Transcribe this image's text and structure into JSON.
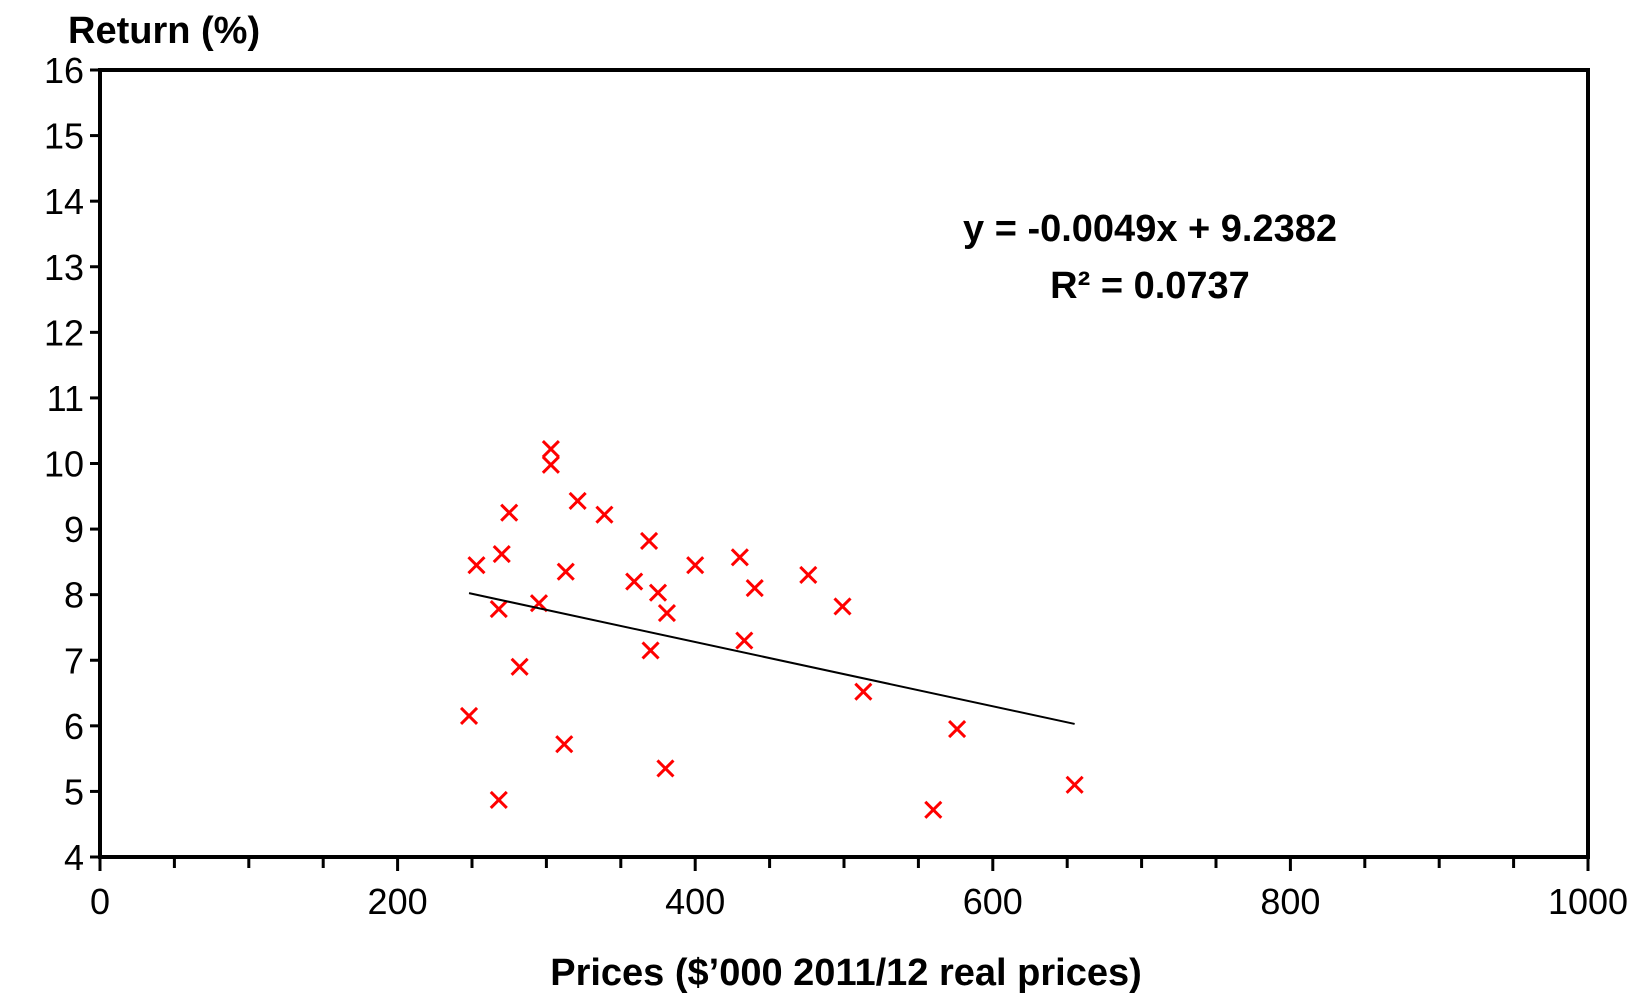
{
  "chart_data": {
    "type": "scatter",
    "title": "",
    "xlabel": "Prices ($’000 2011/12 real prices)",
    "ylabel": "Return (%)",
    "xlim": [
      0,
      1000
    ],
    "ylim": [
      4,
      16
    ],
    "x_ticks": [
      "0",
      "200",
      "400",
      "600",
      "800",
      "1000"
    ],
    "y_ticks": [
      "4",
      "5",
      "6",
      "7",
      "8",
      "9",
      "10",
      "11",
      "12",
      "13",
      "14",
      "15",
      "16"
    ],
    "grid": false,
    "legend": "none",
    "marker": "x",
    "marker_color": "#ff0000",
    "trendline_color": "#000000",
    "points": [
      {
        "x": 248,
        "y": 6.15
      },
      {
        "x": 253,
        "y": 8.45
      },
      {
        "x": 268,
        "y": 4.87
      },
      {
        "x": 268,
        "y": 7.78
      },
      {
        "x": 270,
        "y": 8.62
      },
      {
        "x": 275,
        "y": 9.25
      },
      {
        "x": 282,
        "y": 6.9
      },
      {
        "x": 295,
        "y": 7.87
      },
      {
        "x": 303,
        "y": 10.22
      },
      {
        "x": 303,
        "y": 9.98
      },
      {
        "x": 312,
        "y": 5.72
      },
      {
        "x": 313,
        "y": 8.35
      },
      {
        "x": 321,
        "y": 9.43
      },
      {
        "x": 339,
        "y": 9.22
      },
      {
        "x": 359,
        "y": 8.2
      },
      {
        "x": 369,
        "y": 8.82
      },
      {
        "x": 370,
        "y": 7.15
      },
      {
        "x": 375,
        "y": 8.03
      },
      {
        "x": 380,
        "y": 5.35
      },
      {
        "x": 381,
        "y": 7.72
      },
      {
        "x": 400,
        "y": 8.45
      },
      {
        "x": 430,
        "y": 8.57
      },
      {
        "x": 433,
        "y": 7.3
      },
      {
        "x": 440,
        "y": 8.1
      },
      {
        "x": 476,
        "y": 8.3
      },
      {
        "x": 499,
        "y": 7.82
      },
      {
        "x": 513,
        "y": 6.52
      },
      {
        "x": 560,
        "y": 4.72
      },
      {
        "x": 576,
        "y": 5.95
      },
      {
        "x": 655,
        "y": 5.1
      }
    ],
    "trendline": {
      "slope": -0.0049,
      "intercept": 9.2382,
      "x_start": 248,
      "x_end": 655
    },
    "annotations": {
      "equation": "y = -0.0049x + 9.2382",
      "r_squared": "R² = 0.0737"
    }
  }
}
